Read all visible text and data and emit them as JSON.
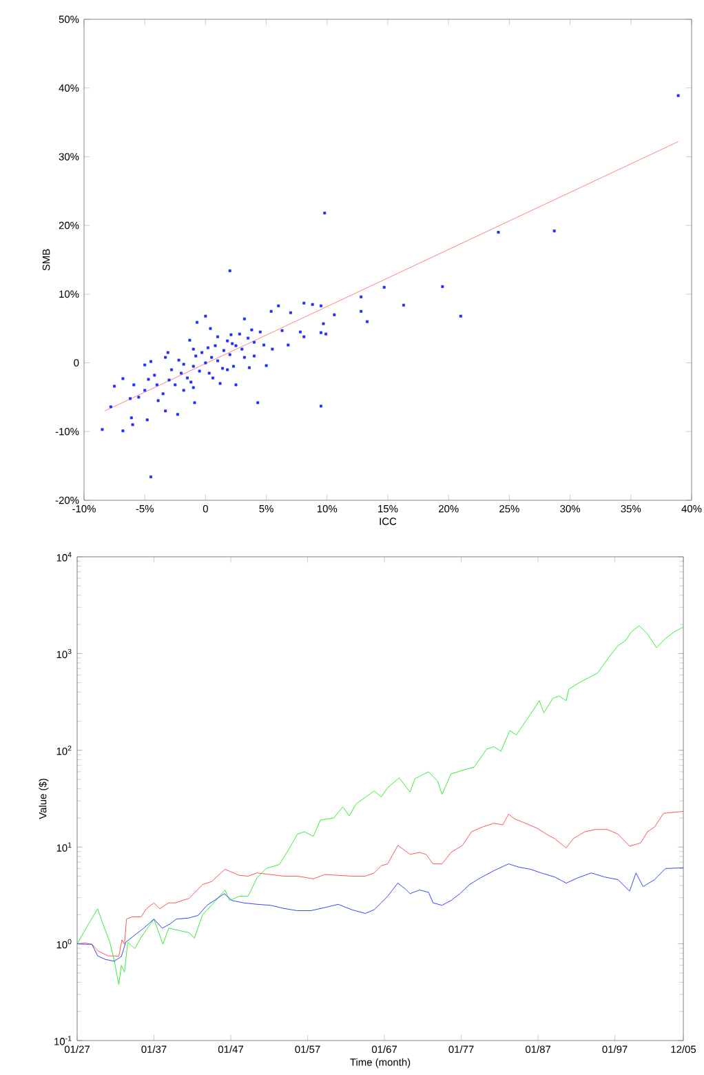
{
  "chart_data": [
    {
      "type": "scatter",
      "xlabel": "ICC",
      "ylabel": "SMB",
      "xlim": [
        -10,
        40
      ],
      "ylim": [
        -20,
        50
      ],
      "xticks": [
        {
          "value": -10,
          "label": "-10%"
        },
        {
          "value": -5,
          "label": "-5%"
        },
        0,
        {
          "value": 5,
          "label": "5%"
        },
        {
          "value": 10,
          "label": "10%"
        },
        {
          "value": 15,
          "label": "15%"
        },
        {
          "value": 20,
          "label": "20%"
        },
        {
          "value": 25,
          "label": "25%"
        },
        {
          "value": 30,
          "label": "30%"
        },
        {
          "value": 35,
          "label": "35%"
        },
        {
          "value": 40,
          "label": "40%"
        }
      ],
      "yticks": [
        {
          "value": -20,
          "label": "-20%"
        },
        {
          "value": -10,
          "label": "-10%"
        },
        0,
        {
          "value": 10,
          "label": "10%"
        },
        {
          "value": 20,
          "label": "20%"
        },
        {
          "value": 30,
          "label": "30%"
        },
        {
          "value": 40,
          "label": "40%"
        },
        {
          "value": 50,
          "label": "50%"
        }
      ],
      "series": [
        {
          "type": "scatter",
          "color": "#1f2fff",
          "marker": "square",
          "x": [
            38.9,
            9.8,
            2.0,
            24.1,
            28.7,
            14.7,
            19.5,
            16.3,
            21.0,
            12.8,
            12.8,
            13.3,
            10.6,
            9.5,
            9.7,
            9.9,
            9.5,
            9.5,
            4.3,
            -4.5,
            -8.5,
            -6.8,
            -7.8,
            -6.1,
            -6.0,
            -4.8,
            -3.3,
            -2.3,
            -6.8,
            -7.5,
            -5.9,
            -4.7,
            -5.0,
            -4.5,
            -3.1,
            -3.3,
            -1.3,
            -0.7,
            0,
            0.4,
            2.5,
            3.6,
            5.0,
            6.0,
            8.1,
            8.8,
            7.0,
            5.4,
            3.2,
            6.3,
            7.8,
            8.1,
            6.8,
            5.5,
            4.0,
            2.1,
            -1.0,
            -0.9,
            1.2,
            -3.9,
            -5.5,
            -5.0,
            -6.2,
            -3,
            -2,
            -1.5,
            -1,
            -0.5,
            0,
            0.5,
            1,
            1.5,
            2,
            2.5,
            3,
            3.5,
            4,
            -2.5,
            -1.8,
            -0.3,
            0.8,
            1.8,
            2.8,
            -2.8,
            -1.2,
            0.3,
            1.4,
            2.3,
            3.2,
            4.5,
            4.8,
            -4,
            -3.5,
            -1.8,
            0.6,
            1.8,
            -4.2,
            -2.2,
            -0.8,
            0.2,
            1.0,
            2.2,
            3.8,
            -1.0
          ],
          "values": [
            38.9,
            21.8,
            13.4,
            19.0,
            19.2,
            11.0,
            11.1,
            8.4,
            6.8,
            9.6,
            7.5,
            6.0,
            7.0,
            8.3,
            5.7,
            4.2,
            4.4,
            -6.3,
            -5.8,
            -16.6,
            -9.7,
            -9.9,
            -6.4,
            -8.0,
            -9.0,
            -8.3,
            -7.0,
            -7.5,
            -2.3,
            -3.4,
            -3.2,
            -2.4,
            -0.3,
            0.2,
            1.5,
            0.8,
            3.3,
            5.9,
            6.8,
            5.0,
            -3.2,
            -0.7,
            -0.4,
            8.3,
            8.7,
            8.5,
            7.3,
            7.5,
            6.4,
            4.7,
            4.5,
            3.8,
            2.6,
            2.0,
            1.0,
            4.1,
            -3.6,
            -5.8,
            -3.0,
            -5.5,
            -5.0,
            -4.0,
            -5.2,
            -2.5,
            -1.5,
            -2.2,
            -0.5,
            -1.2,
            0,
            0.8,
            0.3,
            1.8,
            1.2,
            2.5,
            2.0,
            3.6,
            3.0,
            -3.2,
            -0.2,
            1.5,
            2.5,
            3.2,
            4.2,
            -1.0,
            -2.8,
            -1.5,
            -0.8,
            -0.5,
            0.8,
            4.5,
            2.6,
            -3.2,
            -4.5,
            -4.0,
            -2.2,
            -1.0,
            -1.8,
            0.4,
            1.0,
            2.2,
            3.8,
            2.8,
            4.8,
            2.0
          ]
        },
        {
          "type": "line",
          "color": "#ff7f7f",
          "marker": "none",
          "x": [
            -8.3,
            38.9
          ],
          "values": [
            -7.0,
            32.2
          ]
        }
      ]
    },
    {
      "type": "line",
      "log": true,
      "xlabel": "Time (month)",
      "ylabel": "Value ($)",
      "xlim": [
        "1927-01",
        "2005-12"
      ],
      "ylim": [
        0.1,
        10000
      ],
      "xticks": [
        {
          "value": "1927-01",
          "label": "01/27"
        },
        {
          "value": "1937-01",
          "label": "01/37"
        },
        {
          "value": "1947-01",
          "label": "01/47"
        },
        {
          "value": "1957-01",
          "label": "01/57"
        },
        {
          "value": "1967-01",
          "label": "01/67"
        },
        {
          "value": "1977-01",
          "label": "01/77"
        },
        {
          "value": "1987-01",
          "label": "01/87"
        },
        {
          "value": "1997-01",
          "label": "01/97"
        },
        {
          "value": "2005-12",
          "label": "12/05"
        }
      ],
      "yticks": [
        {
          "value": 0.1,
          "label": "10$^{-1}$"
        },
        {
          "value": 1,
          "label": "10$^{0}$"
        },
        {
          "value": 10,
          "label": "10$^{1}$"
        },
        {
          "value": 100,
          "label": "10$^{2}$"
        },
        {
          "value": 1000,
          "label": "10$^{3}$"
        },
        {
          "value": 10000,
          "label": "10$^{4}$"
        }
      ],
      "series": [
        {
          "color": "#33ee33",
          "x": [
            "1927-01",
            "1928-05",
            "1929-09",
            "1930-05",
            "1931-04",
            "1931-11",
            "1932-06",
            "1932-10",
            "1933-03",
            "1933-08",
            "1934-07",
            "1935-05",
            "1937-01",
            "1938-03",
            "1938-12",
            "1940-05",
            "1941-08",
            "1942-04",
            "1943-05",
            "1944-07",
            "1946-04",
            "1946-11",
            "1948-02",
            "1949-04",
            "1950-06",
            "1951-08",
            "1953-05",
            "1954-07",
            "1955-09",
            "1956-08",
            "1957-10",
            "1958-09",
            "1960-06",
            "1961-08",
            "1962-06",
            "1963-05",
            "1965-09",
            "1966-08",
            "1967-06",
            "1968-12",
            "1970-05",
            "1971-01",
            "1972-10",
            "1973-12",
            "1974-07",
            "1975-09",
            "1977-06",
            "1978-09",
            "1980-05",
            "1981-04",
            "1982-03",
            "1983-05",
            "1984-03",
            "1986-01",
            "1987-03",
            "1987-10",
            "1988-12",
            "1989-10",
            "1990-09",
            "1991-01",
            "1992-03",
            "1993-08",
            "1994-10",
            "1996-04",
            "1997-06",
            "1998-05",
            "1999-03",
            "2000-03",
            "2001-04",
            "2002-06",
            "2003-08",
            "2004-10",
            "2005-12"
          ],
          "values": [
            1.0,
            1.53,
            2.3,
            1.62,
            1.04,
            0.67,
            0.38,
            0.6,
            0.51,
            1.04,
            0.89,
            1.17,
            1.8,
            0.99,
            1.45,
            1.37,
            1.3,
            1.14,
            2.0,
            2.5,
            3.6,
            2.8,
            3.1,
            3.1,
            4.8,
            6.0,
            6.6,
            9.3,
            13.6,
            14.4,
            12.9,
            19,
            20,
            26,
            21,
            28,
            38,
            33,
            41,
            52,
            37,
            51,
            60,
            48,
            35,
            57,
            63,
            67,
            103,
            109,
            98,
            160,
            144,
            235,
            326,
            243,
            344,
            364,
            326,
            428,
            489,
            563,
            628,
            921,
            1210,
            1350,
            1680,
            1940,
            1590,
            1150,
            1430,
            1680,
            1880
          ]
        },
        {
          "color": "#ff5555",
          "x": [
            "1927-01",
            "1928-01",
            "1928-12",
            "1929-10",
            "1931-01",
            "1931-11",
            "1932-06",
            "1932-11",
            "1933-03",
            "1933-06",
            "1934-03",
            "1935-05",
            "1936-01",
            "1937-01",
            "1937-10",
            "1938-12",
            "1939-10",
            "1941-08",
            "1943-05",
            "1944-07",
            "1946-04",
            "1948-02",
            "1949-04",
            "1950-06",
            "1952-03",
            "1953-12",
            "1955-09",
            "1957-10",
            "1959-04",
            "1961-01",
            "1962-10",
            "1964-07",
            "1965-09",
            "1966-08",
            "1967-06",
            "1968-10",
            "1969-10",
            "1970-05",
            "1971-08",
            "1972-06",
            "1973-05",
            "1974-07",
            "1975-09",
            "1977-03",
            "1978-05",
            "1979-10",
            "1981-04",
            "1982-06",
            "1983-03",
            "1983-12",
            "1985-02",
            "1986-11",
            "1988-02",
            "1989-03",
            "1990-09",
            "1991-08",
            "1993-02",
            "1994-07",
            "1996-01",
            "1997-06",
            "1998-12",
            "2000-05",
            "2001-04",
            "2002-03",
            "2003-05",
            "2005-12"
          ],
          "values": [
            1.0,
            1.02,
            0.99,
            0.84,
            0.75,
            0.75,
            0.74,
            1.1,
            0.99,
            1.8,
            1.9,
            1.9,
            2.3,
            2.65,
            2.3,
            2.65,
            2.65,
            2.95,
            4.1,
            4.4,
            5.9,
            5.1,
            5.0,
            5.4,
            5.2,
            5.0,
            5.0,
            4.7,
            5.2,
            5.1,
            5.0,
            5.0,
            5.4,
            6.4,
            6.7,
            10.4,
            9.1,
            8.4,
            8.8,
            8.4,
            6.7,
            6.7,
            8.8,
            10.4,
            14.4,
            16.1,
            17.6,
            17.0,
            21.9,
            19.6,
            18.0,
            15.7,
            13.6,
            12.2,
            9.8,
            12.2,
            14.4,
            15.2,
            15.2,
            13.6,
            10.2,
            11.0,
            14.4,
            16.1,
            22.3,
            23.4
          ]
        },
        {
          "color": "#3344ff",
          "x": [
            "1927-01",
            "1928-01",
            "1928-12",
            "1929-09",
            "1930-09",
            "1931-11",
            "1932-10",
            "1933-05",
            "1934-07",
            "1935-09",
            "1937-01",
            "1938-02",
            "1939-03",
            "1939-12",
            "1941-08",
            "1942-10",
            "1943-12",
            "1946-03",
            "1947-03",
            "1948-09",
            "1950-06",
            "1952-03",
            "1953-12",
            "1955-09",
            "1957-06",
            "1959-04",
            "1961-01",
            "1962-10",
            "1964-07",
            "1965-09",
            "1966-08",
            "1967-06",
            "1968-10",
            "1969-10",
            "1970-05",
            "1971-08",
            "1972-10",
            "1973-05",
            "1974-07",
            "1975-09",
            "1976-11",
            "1978-02",
            "1979-07",
            "1981-04",
            "1983-03",
            "1984-07",
            "1986-01",
            "1987-06",
            "1989-03",
            "1990-09",
            "1992-03",
            "1993-12",
            "1995-09",
            "1997-06",
            "1998-12",
            "1999-10",
            "2000-09",
            "2002-03",
            "2003-08",
            "2005-12"
          ],
          "values": [
            1.0,
            0.99,
            0.99,
            0.75,
            0.69,
            0.66,
            0.74,
            1.04,
            1.23,
            1.45,
            1.8,
            1.45,
            1.62,
            1.8,
            1.85,
            1.97,
            2.5,
            3.3,
            2.8,
            2.65,
            2.56,
            2.5,
            2.32,
            2.2,
            2.2,
            2.37,
            2.56,
            2.25,
            2.06,
            2.25,
            2.65,
            3.1,
            4.24,
            3.67,
            3.3,
            3.6,
            3.4,
            2.65,
            2.5,
            2.8,
            3.3,
            4.1,
            4.8,
            5.7,
            6.7,
            6.2,
            5.9,
            5.4,
            4.9,
            4.24,
            4.8,
            5.4,
            4.9,
            4.6,
            3.5,
            5.4,
            3.9,
            4.6,
            6.0,
            6.1
          ]
        }
      ]
    }
  ]
}
